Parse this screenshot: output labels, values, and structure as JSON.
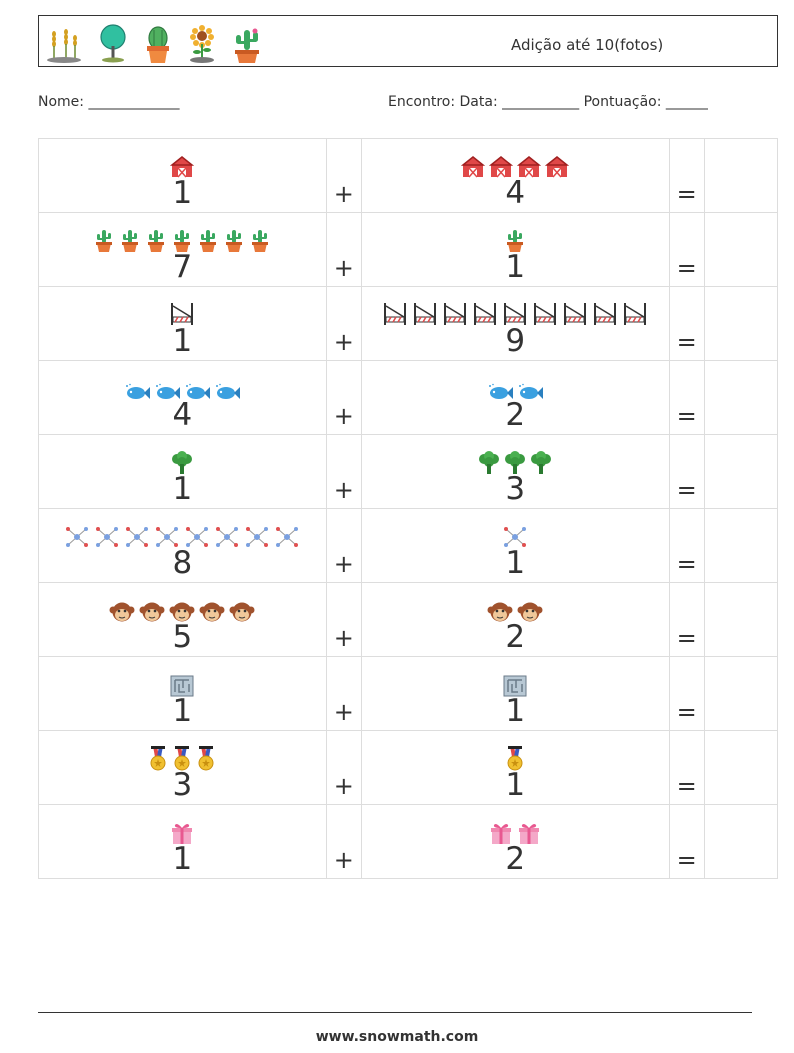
{
  "header": {
    "title": "Adição até 10(fotos)",
    "icons": [
      "wheat-icon",
      "tree-icon",
      "cactus-pot-icon",
      "sunflower-icon",
      "cactus-flower-pot-icon"
    ]
  },
  "fields": {
    "name": "Nome: _____________",
    "right": "Encontro: Data: ___________  Pontuação: ______"
  },
  "operators": {
    "plus": "+",
    "equals": "="
  },
  "problems": [
    {
      "a": 1,
      "b": 4,
      "icon": "barn-icon"
    },
    {
      "a": 7,
      "b": 1,
      "icon": "cactus-icon"
    },
    {
      "a": 1,
      "b": 9,
      "icon": "fence-icon"
    },
    {
      "a": 4,
      "b": 2,
      "icon": "fish-icon"
    },
    {
      "a": 1,
      "b": 3,
      "icon": "broccoli-icon"
    },
    {
      "a": 8,
      "b": 1,
      "icon": "molecule-icon"
    },
    {
      "a": 5,
      "b": 2,
      "icon": "monkey-icon"
    },
    {
      "a": 1,
      "b": 1,
      "icon": "maze-icon"
    },
    {
      "a": 3,
      "b": 1,
      "icon": "medal-icon"
    },
    {
      "a": 1,
      "b": 2,
      "icon": "gift-icon"
    }
  ],
  "footer": "www.snowmath.com"
}
